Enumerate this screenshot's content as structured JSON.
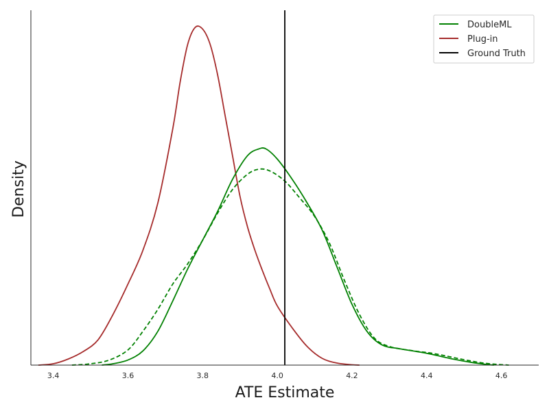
{
  "chart_data": {
    "type": "line",
    "xlabel": "ATE Estimate",
    "ylabel": "Density",
    "xlim": [
      3.34,
      4.7
    ],
    "ylim": [
      0,
      1.0
    ],
    "x_ticks": [
      "3.4",
      "3.6",
      "3.8",
      "4.0",
      "4.2",
      "4.4",
      "4.6"
    ],
    "grid": false,
    "legend_position": "top-right",
    "legend": [
      "DoubleML",
      "Plug-in",
      "Ground Truth"
    ],
    "ground_truth_x": 4.02,
    "series": [
      {
        "name": "DoubleML",
        "color": "#008000",
        "style": "solid",
        "x": [
          3.53,
          3.56,
          3.6,
          3.64,
          3.68,
          3.72,
          3.76,
          3.8,
          3.84,
          3.88,
          3.92,
          3.95,
          3.97,
          4.0,
          4.04,
          4.08,
          4.12,
          4.16,
          4.2,
          4.24,
          4.28,
          4.33,
          4.4,
          4.47,
          4.52,
          4.56,
          4.58
        ],
        "y": [
          0,
          0.004,
          0.015,
          0.042,
          0.1,
          0.19,
          0.285,
          0.37,
          0.455,
          0.55,
          0.62,
          0.64,
          0.64,
          0.61,
          0.55,
          0.48,
          0.4,
          0.29,
          0.18,
          0.1,
          0.06,
          0.048,
          0.035,
          0.018,
          0.008,
          0.002,
          0
        ]
      },
      {
        "name": "DoubleML (dashed)",
        "color": "#008000",
        "style": "dashed",
        "x": [
          3.45,
          3.5,
          3.55,
          3.6,
          3.64,
          3.68,
          3.72,
          3.76,
          3.8,
          3.84,
          3.88,
          3.92,
          3.95,
          3.98,
          4.02,
          4.06,
          4.1,
          4.14,
          4.18,
          4.22,
          4.26,
          4.3,
          4.36,
          4.42,
          4.5,
          4.56,
          4.62
        ],
        "y": [
          0,
          0.004,
          0.015,
          0.045,
          0.1,
          0.165,
          0.24,
          0.3,
          0.37,
          0.45,
          0.52,
          0.565,
          0.58,
          0.575,
          0.545,
          0.495,
          0.44,
          0.36,
          0.25,
          0.15,
          0.08,
          0.055,
          0.043,
          0.034,
          0.016,
          0.005,
          0
        ]
      },
      {
        "name": "Plug-in",
        "color": "#a52a2a",
        "style": "solid",
        "x": [
          3.36,
          3.4,
          3.44,
          3.48,
          3.52,
          3.56,
          3.6,
          3.64,
          3.68,
          3.72,
          3.74,
          3.76,
          3.78,
          3.8,
          3.82,
          3.84,
          3.86,
          3.88,
          3.9,
          3.92,
          3.94,
          3.96,
          3.98,
          4.0,
          4.04,
          4.08,
          4.12,
          4.16,
          4.2,
          4.22
        ],
        "y": [
          0,
          0.004,
          0.018,
          0.04,
          0.075,
          0.15,
          0.24,
          0.34,
          0.48,
          0.7,
          0.84,
          0.95,
          1.0,
          0.995,
          0.95,
          0.86,
          0.74,
          0.62,
          0.5,
          0.41,
          0.34,
          0.28,
          0.225,
          0.175,
          0.11,
          0.055,
          0.02,
          0.006,
          0.001,
          0
        ]
      }
    ]
  }
}
